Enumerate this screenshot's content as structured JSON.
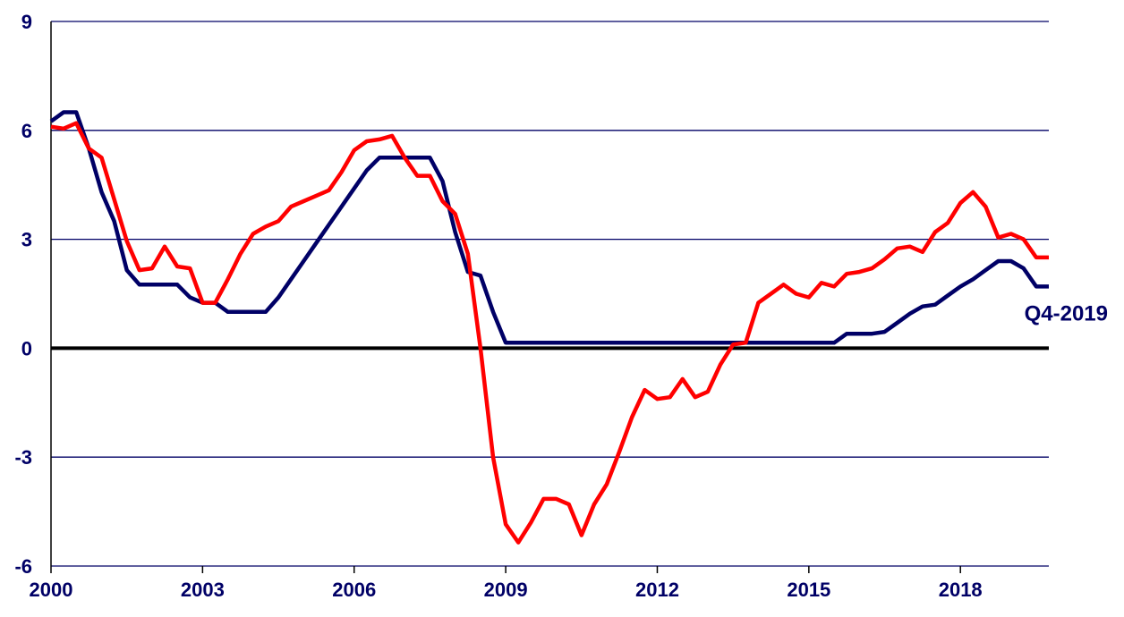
{
  "chart_data": {
    "type": "line",
    "title": "",
    "xlabel": "",
    "ylabel": "",
    "xlim": [
      2000,
      2019.75
    ],
    "ylim": [
      -6,
      9
    ],
    "x_ticks": [
      {
        "value": 2000,
        "label": "2000"
      },
      {
        "value": 2003,
        "label": "2003"
      },
      {
        "value": 2006,
        "label": "2006"
      },
      {
        "value": 2009,
        "label": "2009"
      },
      {
        "value": 2012,
        "label": "2012"
      },
      {
        "value": 2015,
        "label": "2015"
      },
      {
        "value": 2018,
        "label": "2018"
      }
    ],
    "y_ticks": [
      {
        "value": 9,
        "label": "9"
      },
      {
        "value": 6,
        "label": "6"
      },
      {
        "value": 3,
        "label": "3"
      },
      {
        "value": 0,
        "label": "0"
      },
      {
        "value": -3,
        "label": "-3"
      },
      {
        "value": -6,
        "label": "-6"
      }
    ],
    "grid": true,
    "legend": "none",
    "annotation": {
      "text": "Q4-2019",
      "x": 2019.75,
      "y": 1.7
    },
    "series": [
      {
        "color": "#000066",
        "x": [
          2000.0,
          2000.25,
          2000.5,
          2000.75,
          2001.0,
          2001.25,
          2001.5,
          2001.75,
          2002.0,
          2002.25,
          2002.5,
          2002.75,
          2003.0,
          2003.25,
          2003.5,
          2003.75,
          2004.0,
          2004.25,
          2004.5,
          2004.75,
          2005.0,
          2005.25,
          2005.5,
          2005.75,
          2006.0,
          2006.25,
          2006.5,
          2006.75,
          2007.0,
          2007.25,
          2007.5,
          2007.75,
          2008.0,
          2008.25,
          2008.5,
          2008.75,
          2009.0,
          2009.25,
          2009.5,
          2009.75,
          2010.0,
          2010.25,
          2010.5,
          2010.75,
          2011.0,
          2011.25,
          2011.5,
          2011.75,
          2012.0,
          2012.25,
          2012.5,
          2012.75,
          2013.0,
          2013.25,
          2013.5,
          2013.75,
          2014.0,
          2014.25,
          2014.5,
          2014.75,
          2015.0,
          2015.25,
          2015.5,
          2015.75,
          2016.0,
          2016.25,
          2016.5,
          2016.75,
          2017.0,
          2017.25,
          2017.5,
          2017.75,
          2018.0,
          2018.25,
          2018.5,
          2018.75,
          2019.0,
          2019.25,
          2019.5,
          2019.75
        ],
        "values": [
          6.25,
          6.5,
          6.5,
          5.5,
          4.3,
          3.5,
          2.15,
          1.75,
          1.75,
          1.75,
          1.75,
          1.4,
          1.25,
          1.25,
          1.0,
          1.0,
          1.0,
          1.0,
          1.4,
          1.9,
          2.4,
          2.9,
          3.4,
          3.9,
          4.4,
          4.9,
          5.25,
          5.25,
          5.25,
          5.25,
          5.25,
          4.6,
          3.2,
          2.1,
          2.0,
          1.0,
          0.15,
          0.15,
          0.15,
          0.15,
          0.15,
          0.15,
          0.15,
          0.15,
          0.15,
          0.15,
          0.15,
          0.15,
          0.15,
          0.15,
          0.15,
          0.15,
          0.15,
          0.15,
          0.15,
          0.15,
          0.15,
          0.15,
          0.15,
          0.15,
          0.15,
          0.15,
          0.15,
          0.4,
          0.4,
          0.4,
          0.45,
          0.7,
          0.95,
          1.15,
          1.2,
          1.45,
          1.7,
          1.9,
          2.15,
          2.4,
          2.4,
          2.2,
          1.7,
          1.7
        ]
      },
      {
        "color": "#ff0000",
        "x": [
          2000.0,
          2000.25,
          2000.5,
          2000.75,
          2001.0,
          2001.25,
          2001.5,
          2001.75,
          2002.0,
          2002.25,
          2002.5,
          2002.75,
          2003.0,
          2003.25,
          2003.5,
          2003.75,
          2004.0,
          2004.25,
          2004.5,
          2004.75,
          2005.0,
          2005.25,
          2005.5,
          2005.75,
          2006.0,
          2006.25,
          2006.5,
          2006.75,
          2007.0,
          2007.25,
          2007.5,
          2007.75,
          2008.0,
          2008.25,
          2008.5,
          2008.75,
          2009.0,
          2009.25,
          2009.5,
          2009.75,
          2010.0,
          2010.25,
          2010.5,
          2010.75,
          2011.0,
          2011.25,
          2011.5,
          2011.75,
          2012.0,
          2012.25,
          2012.5,
          2012.75,
          2013.0,
          2013.25,
          2013.5,
          2013.75,
          2014.0,
          2014.25,
          2014.5,
          2014.75,
          2015.0,
          2015.25,
          2015.5,
          2015.75,
          2016.0,
          2016.25,
          2016.5,
          2016.75,
          2017.0,
          2017.25,
          2017.5,
          2017.75,
          2018.0,
          2018.25,
          2018.5,
          2018.75,
          2019.0,
          2019.25,
          2019.5,
          2019.75
        ],
        "values": [
          6.1,
          6.05,
          6.2,
          5.5,
          5.25,
          4.1,
          2.95,
          2.15,
          2.2,
          2.8,
          2.25,
          2.2,
          1.25,
          1.25,
          1.9,
          2.6,
          3.15,
          3.35,
          3.5,
          3.9,
          4.05,
          4.2,
          4.35,
          4.85,
          5.45,
          5.7,
          5.75,
          5.85,
          5.25,
          4.75,
          4.75,
          4.05,
          3.7,
          2.6,
          0.0,
          -3.0,
          -4.85,
          -5.35,
          -4.8,
          -4.15,
          -4.15,
          -4.3,
          -5.15,
          -4.3,
          -3.75,
          -2.85,
          -1.9,
          -1.15,
          -1.4,
          -1.35,
          -0.85,
          -1.35,
          -1.2,
          -0.45,
          0.1,
          0.15,
          1.25,
          1.5,
          1.75,
          1.5,
          1.4,
          1.8,
          1.7,
          2.05,
          2.1,
          2.2,
          2.45,
          2.75,
          2.8,
          2.65,
          3.2,
          3.45,
          4.0,
          4.3,
          3.9,
          3.05,
          3.15,
          3.0,
          2.5,
          2.5
        ]
      }
    ]
  }
}
